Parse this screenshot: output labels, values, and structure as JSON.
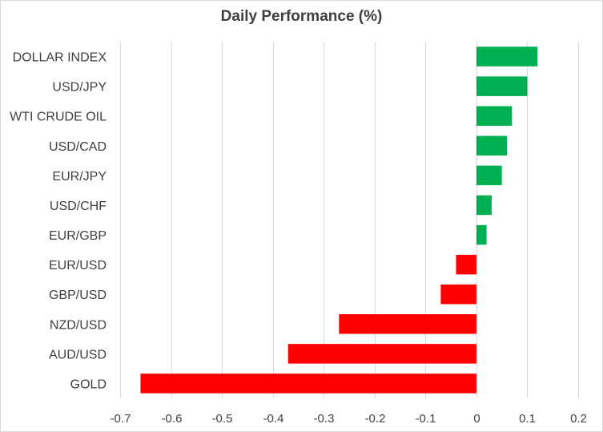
{
  "chart_data": {
    "type": "bar",
    "orientation": "horizontal",
    "title": "Daily Performance (%)",
    "categories": [
      "DOLLAR INDEX",
      "USD/JPY",
      "WTI CRUDE OIL",
      "USD/CAD",
      "EUR/JPY",
      "USD/CHF",
      "EUR/GBP",
      "EUR/USD",
      "GBP/USD",
      "NZD/USD",
      "AUD/USD",
      "GOLD"
    ],
    "values": [
      0.12,
      0.1,
      0.07,
      0.06,
      0.05,
      0.03,
      0.02,
      -0.04,
      -0.07,
      -0.27,
      -0.37,
      -0.66
    ],
    "xlim": [
      -0.7,
      0.2
    ],
    "xticks": [
      "-0.7",
      "-0.6",
      "-0.5",
      "-0.4",
      "-0.3",
      "-0.2",
      "-0.1",
      "0",
      "0.1",
      "0.2"
    ],
    "xtick_values": [
      -0.7,
      -0.6,
      -0.5,
      -0.4,
      -0.3,
      -0.2,
      -0.1,
      0,
      0.1,
      0.2
    ],
    "grid": "vertical",
    "colors": {
      "positive": "#00b050",
      "negative": "#ff0000",
      "grid": "#d9d9d9",
      "text": "#404040"
    }
  }
}
